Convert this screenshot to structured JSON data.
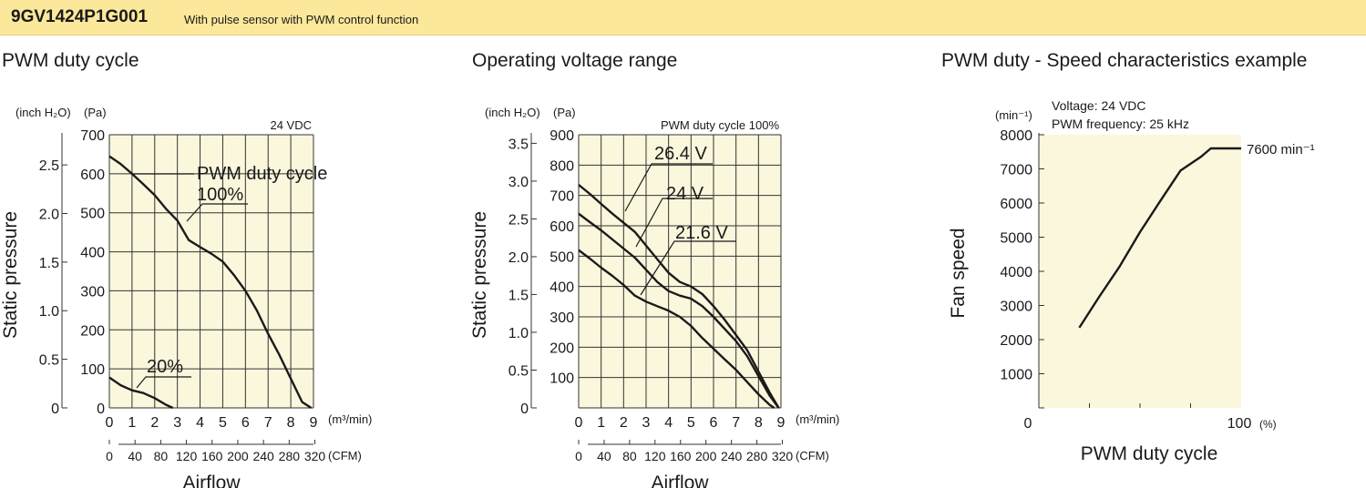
{
  "header": {
    "model": "9GV1424P1G001",
    "description": "With pulse sensor with PWM control function"
  },
  "sections": [
    {
      "title": "PWM duty cycle"
    },
    {
      "title": "Operating voltage range"
    },
    {
      "title": "PWM duty - Speed characteristics example"
    }
  ],
  "colors": {
    "banner": "#fbe89a",
    "plot_bg": "#fbf7dc",
    "line": "#1a1a1a"
  },
  "chart_data": [
    {
      "type": "line",
      "note": "24 VDC",
      "xlabel": "Airflow",
      "ylabel": "Static pressure",
      "x_unit": "(m³/min)",
      "x2_unit": "(CFM)",
      "y_unit": "(Pa)",
      "y2_unit": "(inch H₂O)",
      "xlim": [
        0,
        9
      ],
      "ylim": [
        0,
        700
      ],
      "x_ticks": [
        "0",
        "1",
        "2",
        "3",
        "4",
        "5",
        "6",
        "7",
        "8",
        "9"
      ],
      "y_ticks": [
        "0",
        "100",
        "200",
        "300",
        "400",
        "500",
        "600",
        "700"
      ],
      "x2_ticks": [
        "0",
        "40",
        "80",
        "120",
        "160",
        "200",
        "240",
        "280",
        "320"
      ],
      "y2_ticks": [
        "0",
        "0.5",
        "1.0",
        "1.5",
        "2.0",
        "2.5"
      ],
      "series": [
        {
          "name": "PWM duty cycle 100%",
          "label_lines": [
            "PWM duty cycle",
            "100%"
          ],
          "x": [
            0,
            0.5,
            1,
            1.5,
            2,
            2.5,
            3,
            3.5,
            4,
            4.5,
            5,
            5.5,
            6,
            6.5,
            7,
            7.5,
            8,
            8.5,
            8.9
          ],
          "y": [
            645,
            625,
            600,
            573,
            545,
            510,
            480,
            430,
            412,
            395,
            375,
            340,
            300,
            250,
            190,
            135,
            75,
            15,
            0
          ]
        },
        {
          "name": "20%",
          "label_lines": [
            "20%"
          ],
          "x": [
            0,
            0.5,
            1,
            1.5,
            2,
            2.5,
            2.8
          ],
          "y": [
            78,
            58,
            45,
            38,
            25,
            8,
            0
          ]
        }
      ]
    },
    {
      "type": "line",
      "note": "PWM duty cycle 100%",
      "xlabel": "Airflow",
      "ylabel": "Static pressure",
      "x_unit": "(m³/min)",
      "x2_unit": "(CFM)",
      "y_unit": "(Pa)",
      "y2_unit": "(inch H₂O)",
      "xlim": [
        0,
        9
      ],
      "ylim": [
        0,
        900
      ],
      "x_ticks": [
        "0",
        "1",
        "2",
        "3",
        "4",
        "5",
        "6",
        "7",
        "8",
        "9"
      ],
      "y_ticks": [
        "",
        "100",
        "200",
        "300",
        "400",
        "500",
        "600",
        "700",
        "800",
        "900"
      ],
      "x2_ticks": [
        "0",
        "40",
        "80",
        "120",
        "160",
        "200",
        "240",
        "280",
        "320"
      ],
      "y2_ticks": [
        "0",
        "0.5",
        "1.0",
        "1.5",
        "2.0",
        "2.5",
        "3.0",
        "3.5"
      ],
      "series": [
        {
          "name": "26.4 V",
          "label_lines": [
            "26.4 V"
          ],
          "x": [
            0,
            0.5,
            1,
            1.5,
            2,
            2.5,
            3,
            3.5,
            4,
            4.5,
            5,
            5.5,
            6,
            6.5,
            7,
            7.5,
            8,
            8.5,
            8.9
          ],
          "y": [
            735,
            705,
            672,
            640,
            610,
            580,
            535,
            490,
            445,
            415,
            400,
            375,
            335,
            290,
            240,
            190,
            120,
            50,
            0
          ]
        },
        {
          "name": "24 V",
          "label_lines": [
            "24 V"
          ],
          "x": [
            0,
            0.5,
            1,
            1.5,
            2,
            2.5,
            3,
            3.5,
            4,
            4.5,
            5,
            5.5,
            6,
            6.5,
            7,
            7.5,
            8,
            8.5,
            8.9
          ],
          "y": [
            640,
            612,
            585,
            555,
            525,
            495,
            455,
            415,
            385,
            370,
            360,
            335,
            300,
            260,
            220,
            170,
            105,
            40,
            0
          ]
        },
        {
          "name": "21.6 V",
          "label_lines": [
            "21.6 V"
          ],
          "x": [
            0,
            0.5,
            1,
            1.5,
            2,
            2.5,
            3,
            3.5,
            4,
            4.5,
            5,
            5.5,
            6,
            6.5,
            7,
            7.5,
            8,
            8.5,
            8.7
          ],
          "y": [
            520,
            492,
            462,
            435,
            405,
            370,
            350,
            335,
            320,
            300,
            270,
            230,
            195,
            160,
            125,
            85,
            45,
            10,
            0
          ]
        }
      ]
    },
    {
      "type": "line",
      "note_lines": [
        "Voltage: 24 VDC",
        "PWM frequency: 25 kHz"
      ],
      "xlabel": "PWM duty cycle",
      "ylabel": "Fan speed",
      "x_unit": "(%)",
      "y_unit": "(min⁻¹)",
      "xlim": [
        0,
        100
      ],
      "ylim": [
        0,
        8000
      ],
      "x_ticks": [
        "0",
        "100"
      ],
      "y_ticks": [
        "",
        "1000",
        "2000",
        "3000",
        "4000",
        "5000",
        "6000",
        "7000",
        "8000"
      ],
      "end_label": "7600 min⁻¹",
      "series": [
        {
          "name": "Fan speed",
          "x": [
            20,
            30,
            40,
            50,
            60,
            70,
            80,
            85,
            88,
            90,
            100
          ],
          "y": [
            2350,
            3270,
            4150,
            5150,
            6060,
            6950,
            7350,
            7600,
            7600,
            7600,
            7600
          ]
        }
      ]
    }
  ]
}
